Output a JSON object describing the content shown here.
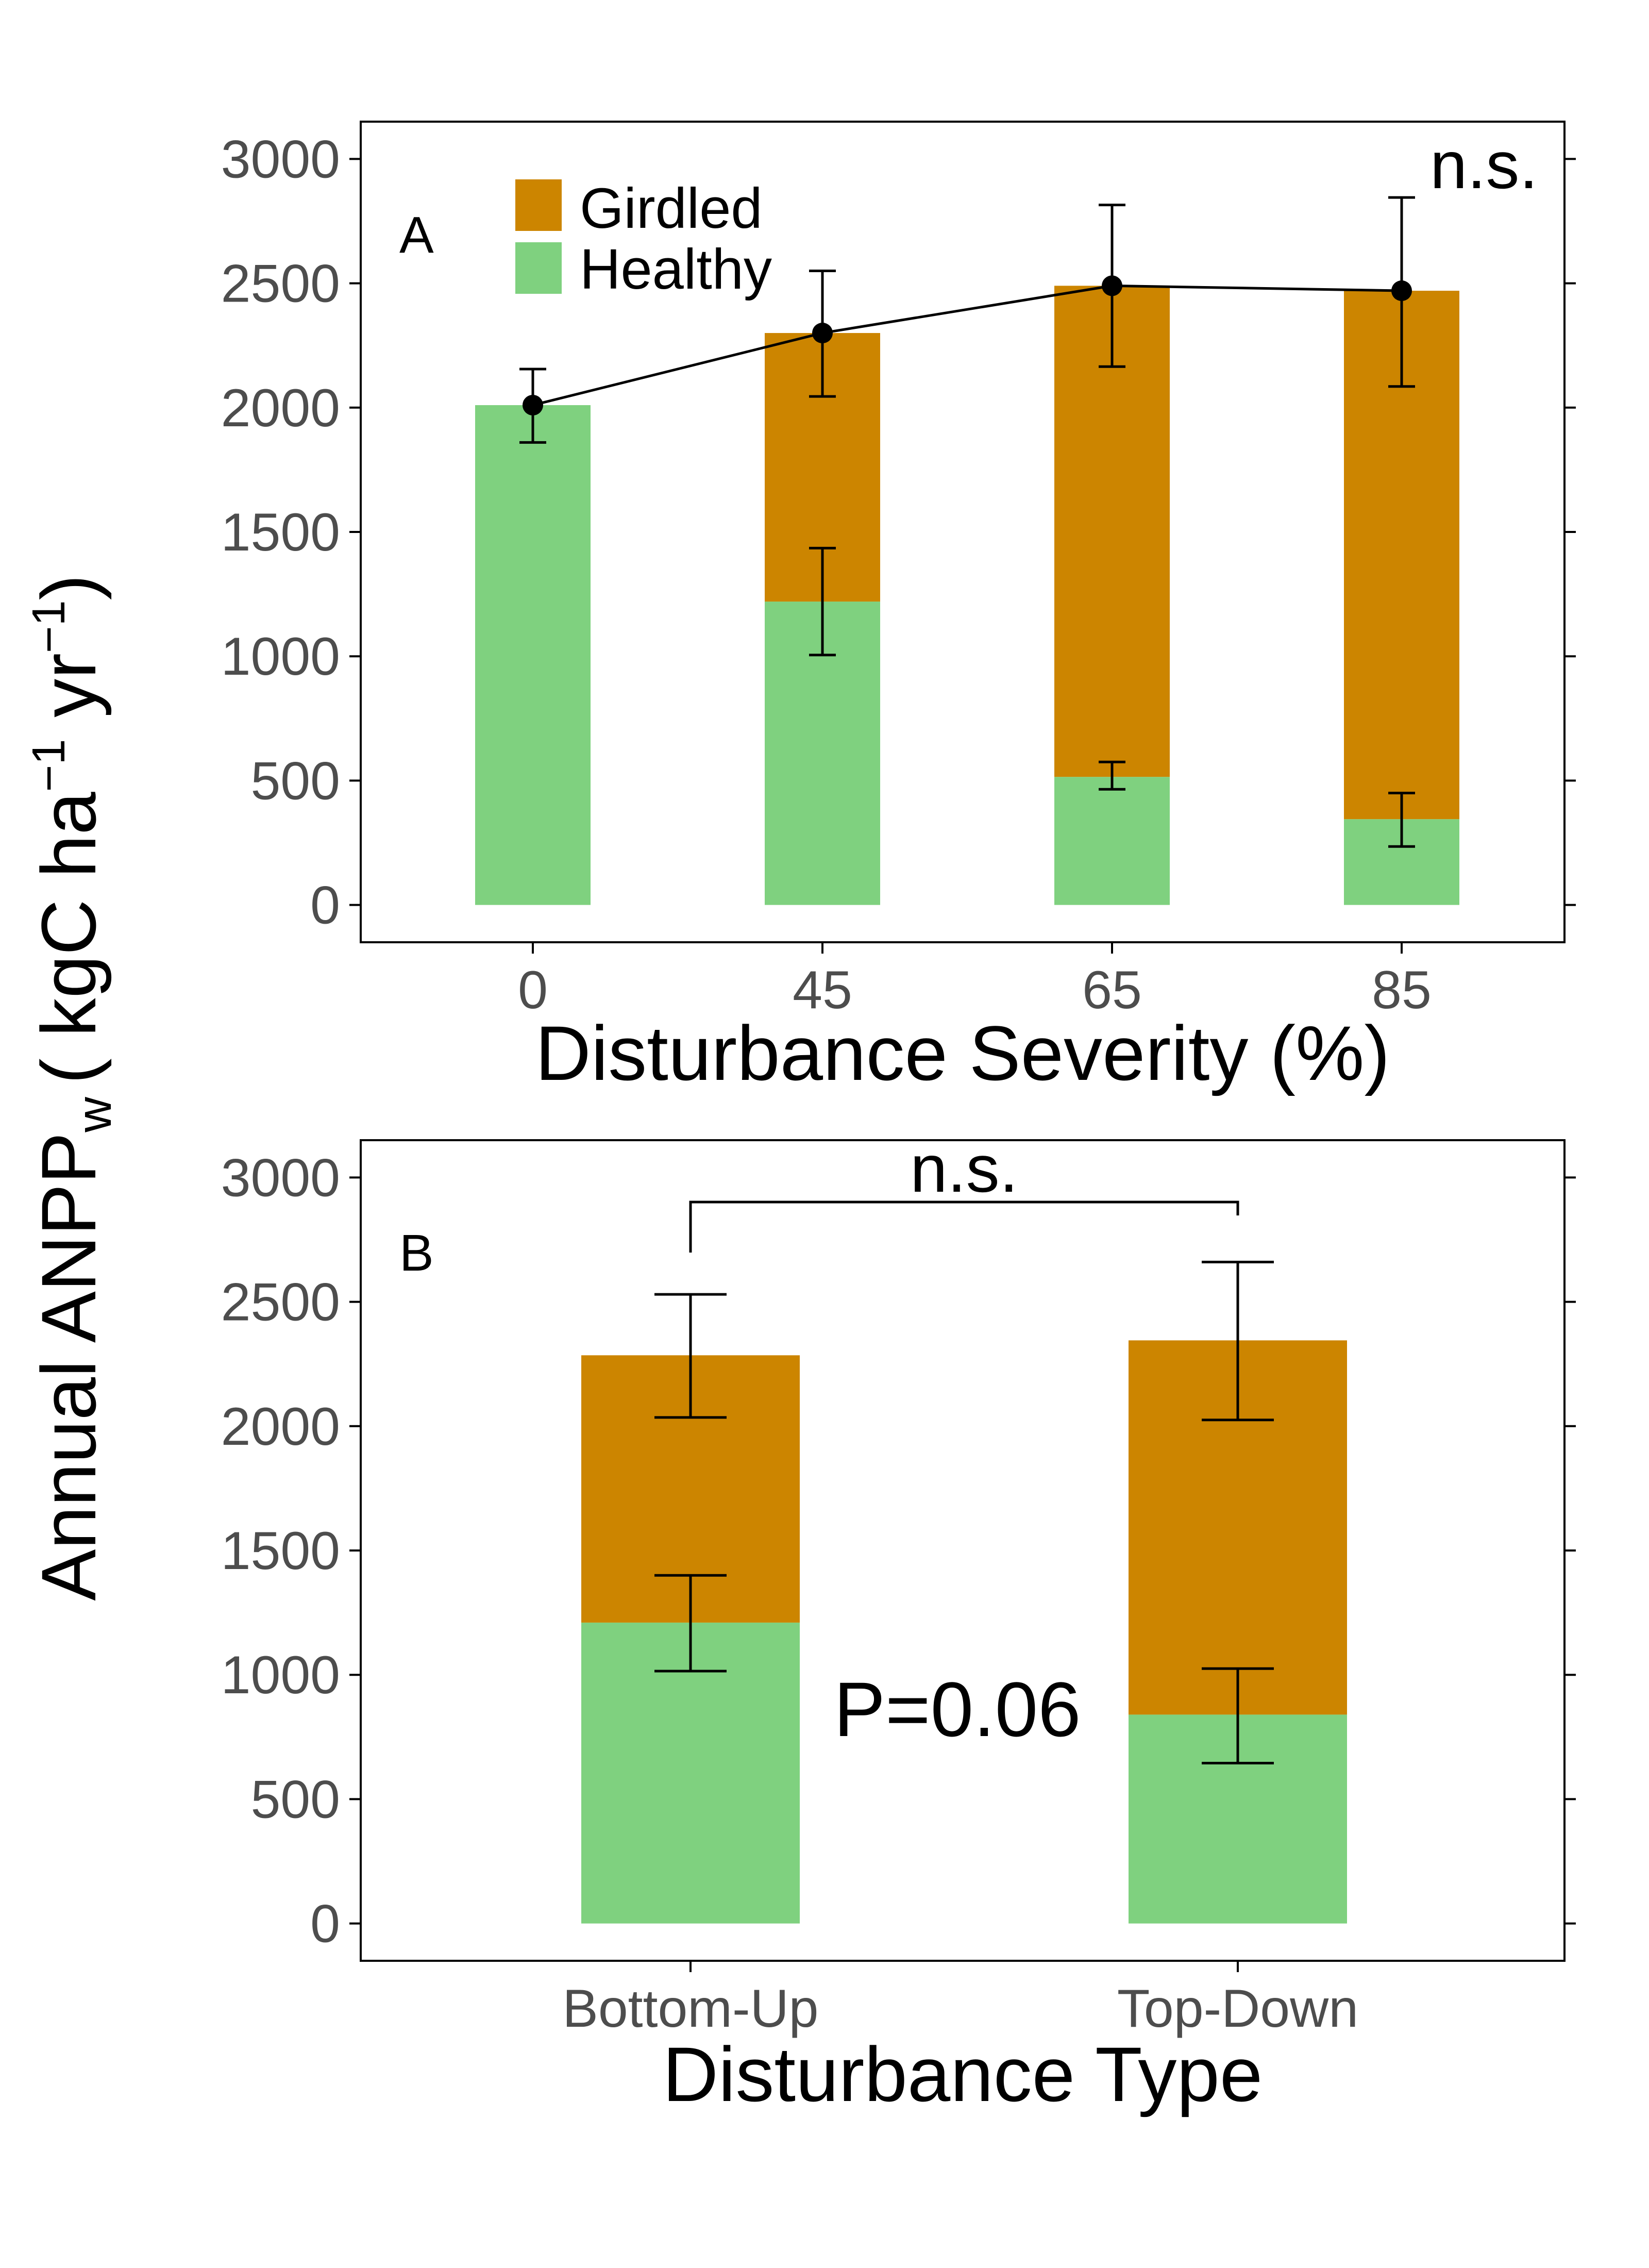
{
  "colors": {
    "girdled": "#CC8500",
    "healthy": "#7FD17F",
    "line": "#000000"
  },
  "y_axis_title": "Annual ANPP",
  "y_axis_subscript": "w",
  "y_axis_units": "( kgC ha",
  "y_axis_units_mid": " yr",
  "y_axis_units_end": ")",
  "y_axis_exponent": "−1",
  "legend": {
    "girdled": "Girdled",
    "healthy": "Healthy"
  },
  "chart_data": [
    {
      "type": "bar",
      "panel": "A",
      "xlabel": "Disturbance Severity (%)",
      "ylabel": "Annual ANPPw ( kgC ha−1 yr−1)",
      "categories": [
        "0",
        "45",
        "65",
        "85"
      ],
      "ylim": [
        -150,
        3150
      ],
      "yticks": [
        0,
        500,
        1000,
        1500,
        2000,
        2500,
        3000
      ],
      "stacked": true,
      "series": [
        {
          "name": "Healthy",
          "values": [
            2010,
            1220,
            515,
            345
          ],
          "error_low": [
            1860,
            1005,
            465,
            235
          ],
          "error_high": [
            2160,
            1435,
            575,
            450
          ]
        },
        {
          "name": "Girdled",
          "values": [
            0,
            1080,
            1975,
            2125
          ]
        }
      ],
      "total_line": {
        "values": [
          2010,
          2300,
          2490,
          2470
        ],
        "error_low": [
          1860,
          2045,
          2165,
          2085
        ],
        "error_high": [
          2155,
          2550,
          2815,
          2845
        ]
      },
      "annotation": "n.s.",
      "grid": false,
      "legend_position": "top-left"
    },
    {
      "type": "bar",
      "panel": "B",
      "xlabel": "Disturbance Type",
      "ylabel": "Annual ANPPw ( kgC ha−1 yr−1)",
      "categories": [
        "Bottom-Up",
        "Top-Down"
      ],
      "ylim": [
        -150,
        3150
      ],
      "yticks": [
        0,
        500,
        1000,
        1500,
        2000,
        2500,
        3000
      ],
      "stacked": true,
      "series": [
        {
          "name": "Healthy",
          "values": [
            1210,
            840
          ],
          "error_low": [
            1015,
            645
          ],
          "error_high": [
            1400,
            1025
          ]
        },
        {
          "name": "Girdled",
          "values": [
            1075,
            1505
          ],
          "error_low": [
            2035,
            2025
          ],
          "error_high": [
            2530,
            2660
          ]
        }
      ],
      "bracket_label": "n.s.",
      "p_value_label": "P=0.06",
      "grid": false
    }
  ]
}
